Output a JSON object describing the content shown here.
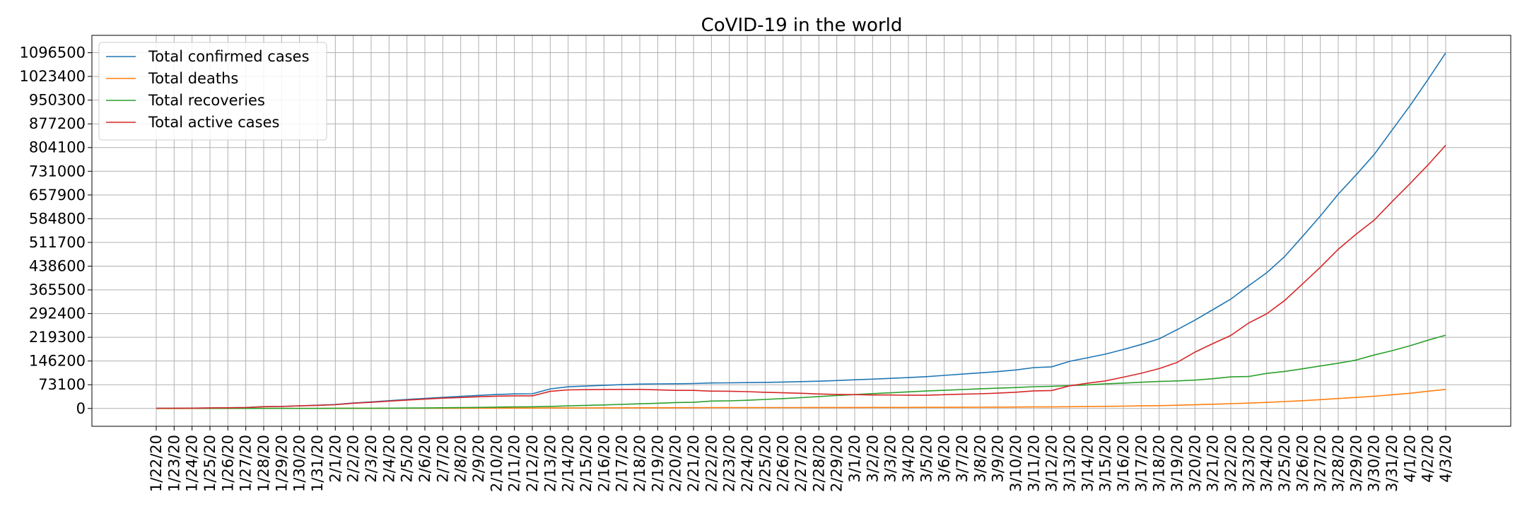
{
  "chart_data": {
    "type": "line",
    "title": "CoVID-19 in the world",
    "xlabel": "",
    "ylabel": "",
    "grid": true,
    "legend_position": "top-left",
    "categories": [
      "1/22/20",
      "1/23/20",
      "1/24/20",
      "1/25/20",
      "1/26/20",
      "1/27/20",
      "1/28/20",
      "1/29/20",
      "1/30/20",
      "1/31/20",
      "2/1/20",
      "2/2/20",
      "2/3/20",
      "2/4/20",
      "2/5/20",
      "2/6/20",
      "2/7/20",
      "2/8/20",
      "2/9/20",
      "2/10/20",
      "2/11/20",
      "2/12/20",
      "2/13/20",
      "2/14/20",
      "2/15/20",
      "2/16/20",
      "2/17/20",
      "2/18/20",
      "2/19/20",
      "2/20/20",
      "2/21/20",
      "2/22/20",
      "2/23/20",
      "2/24/20",
      "2/25/20",
      "2/26/20",
      "2/27/20",
      "2/28/20",
      "2/29/20",
      "3/1/20",
      "3/2/20",
      "3/3/20",
      "3/4/20",
      "3/5/20",
      "3/6/20",
      "3/7/20",
      "3/8/20",
      "3/9/20",
      "3/10/20",
      "3/11/20",
      "3/12/20",
      "3/13/20",
      "3/14/20",
      "3/15/20",
      "3/16/20",
      "3/17/20",
      "3/18/20",
      "3/19/20",
      "3/20/20",
      "3/21/20",
      "3/22/20",
      "3/23/20",
      "3/24/20",
      "3/25/20",
      "3/26/20",
      "3/27/20",
      "3/28/20",
      "3/29/20",
      "3/30/20",
      "3/31/20",
      "4/1/20",
      "4/2/20",
      "4/3/20"
    ],
    "yticks": [
      0,
      73100,
      146200,
      219300,
      292400,
      365500,
      438600,
      511700,
      584800,
      657900,
      731000,
      804100,
      877200,
      950300,
      1023400,
      1096500
    ],
    "ylim": [
      -55000,
      1150000
    ],
    "series": [
      {
        "name": "Total confirmed cases",
        "color": "#1f77b4",
        "values": [
          555,
          654,
          941,
          1434,
          2118,
          2927,
          5578,
          6166,
          8234,
          9927,
          12038,
          16787,
          19881,
          23892,
          27635,
          30794,
          34391,
          37120,
          40150,
          42762,
          44802,
          45221,
          60368,
          66885,
          69030,
          71224,
          73258,
          75136,
          75639,
          76197,
          76819,
          78572,
          78958,
          79561,
          80406,
          81388,
          82746,
          84112,
          86011,
          88369,
          90306,
          92840,
          95120,
          97886,
          101801,
          105847,
          109821,
          113590,
          118620,
          125875,
          128352,
          145205,
          156101,
          167454,
          181574,
          197102,
          214821,
          242570,
          272208,
          304507,
          336953,
          378235,
          418045,
          467653,
          529591,
          593291,
          660693,
          720140,
          782389,
          857487,
          932605,
          1013157,
          1095917
        ]
      },
      {
        "name": "Total deaths",
        "color": "#ff7f0e",
        "values": [
          17,
          18,
          26,
          42,
          56,
          82,
          131,
          133,
          171,
          213,
          259,
          362,
          426,
          492,
          564,
          634,
          719,
          806,
          906,
          1013,
          1113,
          1118,
          1371,
          1523,
          1666,
          1770,
          1868,
          2007,
          2122,
          2247,
          2251,
          2458,
          2469,
          2629,
          2708,
          2770,
          2814,
          2872,
          2941,
          2996,
          3085,
          3160,
          3254,
          3348,
          3460,
          3558,
          3802,
          3988,
          4262,
          4615,
          4720,
          5404,
          5819,
          6440,
          7126,
          7905,
          8733,
          9867,
          11299,
          12973,
          14651,
          16505,
          18625,
          21181,
          23970,
          27198,
          30652,
          33925,
          37582,
          42107,
          46809,
          52983,
          58787
        ]
      },
      {
        "name": "Total recoveries",
        "color": "#2ca02c",
        "values": [
          28,
          30,
          36,
          39,
          52,
          61,
          107,
          126,
          143,
          222,
          284,
          472,
          623,
          852,
          1124,
          1487,
          2011,
          2616,
          3244,
          3946,
          4683,
          5150,
          6295,
          8058,
          9395,
          10865,
          12583,
          14352,
          16121,
          18177,
          18890,
          22886,
          23394,
          25227,
          27905,
          30384,
          33277,
          36711,
          39782,
          42716,
          45602,
          48228,
          51170,
          53796,
          55865,
          58358,
          60694,
          62494,
          64404,
          67003,
          68324,
          70251,
          72624,
          76034,
          78088,
          80840,
          83207,
          84854,
          87256,
          91676,
          97243,
          98334,
          108000,
          114074,
          122150,
          130915,
          139415,
          149082,
          164566,
          178034,
          193177,
          210263,
          225796
        ]
      },
      {
        "name": "Total active cases",
        "color": "#d62728",
        "values": [
          510,
          606,
          879,
          1353,
          2010,
          2784,
          5340,
          5907,
          7920,
          9492,
          11495,
          15953,
          18832,
          22548,
          25947,
          28673,
          31661,
          33698,
          36000,
          37803,
          39006,
          38953,
          52702,
          57304,
          57969,
          58589,
          58807,
          58777,
          57396,
          55773,
          55678,
          53228,
          53095,
          51705,
          49793,
          48234,
          46655,
          44529,
          43288,
          42657,
          41619,
          41452,
          40696,
          40742,
          42476,
          43931,
          45325,
          47108,
          49954,
          54257,
          55308,
          69550,
          77658,
          84980,
          96360,
          108357,
          122881,
          141849,
          173653,
          199858,
          225059,
          263396,
          291420,
          332398,
          383471,
          435178,
          490626,
          537133,
          580241,
          637346,
          692619,
          749911,
          811334
        ]
      }
    ]
  }
}
